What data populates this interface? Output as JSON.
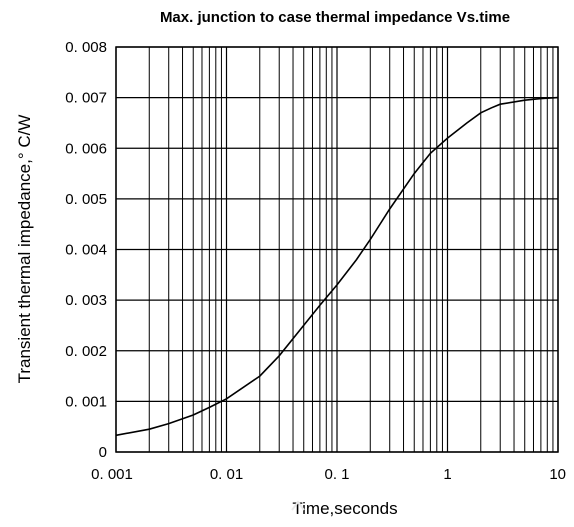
{
  "chart_data": {
    "type": "line",
    "title": "Max. junction to case thermal impedance Vs.time",
    "xlabel": "Time,seconds",
    "ylabel": "Transient thermal impedance,° C/W",
    "x_scale": "log",
    "xlim": [
      0.001,
      10
    ],
    "ylim": [
      0,
      0.008
    ],
    "grid": true,
    "x_tick_labels": [
      "0. 001",
      "0. 01",
      "0. 1",
      "1",
      "10"
    ],
    "x_tick_values": [
      0.001,
      0.01,
      0.1,
      1,
      10
    ],
    "y_tick_labels": [
      "0",
      "0. 001",
      "0. 002",
      "0. 003",
      "0. 004",
      "0. 005",
      "0. 006",
      "0. 007",
      "0. 008"
    ],
    "y_tick_values": [
      0,
      0.001,
      0.002,
      0.003,
      0.004,
      0.005,
      0.006,
      0.007,
      0.008
    ],
    "series": [
      {
        "color": "#000000",
        "x": [
          0.001,
          0.002,
          0.003,
          0.005,
          0.007,
          0.01,
          0.02,
          0.03,
          0.05,
          0.07,
          0.1,
          0.15,
          0.2,
          0.3,
          0.5,
          0.7,
          1,
          1.5,
          2,
          2.5,
          3,
          5,
          7,
          10
        ],
        "y": [
          0.00033,
          0.00045,
          0.00056,
          0.00073,
          0.00088,
          0.00105,
          0.0015,
          0.0019,
          0.0025,
          0.0029,
          0.0033,
          0.0038,
          0.0042,
          0.0048,
          0.0055,
          0.0059,
          0.0062,
          0.0065,
          0.0067,
          0.0068,
          0.00687,
          0.00695,
          0.00698,
          0.007
        ]
      }
    ]
  }
}
